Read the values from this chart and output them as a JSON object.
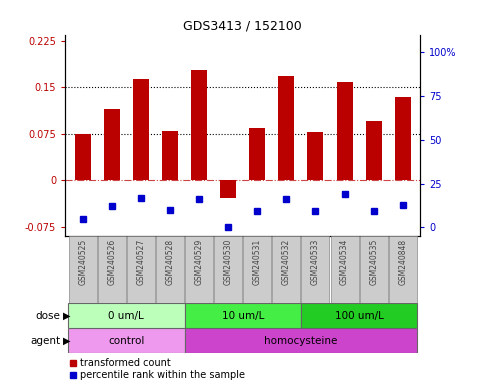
{
  "title": "GDS3413 / 152100",
  "samples": [
    "GSM240525",
    "GSM240526",
    "GSM240527",
    "GSM240528",
    "GSM240529",
    "GSM240530",
    "GSM240531",
    "GSM240532",
    "GSM240533",
    "GSM240534",
    "GSM240535",
    "GSM240848"
  ],
  "red_values": [
    0.075,
    0.115,
    0.163,
    0.08,
    0.178,
    -0.028,
    0.085,
    0.168,
    0.078,
    0.158,
    0.095,
    0.135
  ],
  "blue_values": [
    -0.062,
    -0.042,
    -0.028,
    -0.048,
    -0.03,
    -0.075,
    -0.05,
    -0.03,
    -0.05,
    -0.022,
    -0.05,
    -0.04
  ],
  "ylim_left": [
    -0.09,
    0.235
  ],
  "ylim_right": [
    -5,
    110
  ],
  "yticks_left": [
    -0.075,
    0,
    0.075,
    0.15,
    0.225
  ],
  "yticks_right": [
    0,
    25,
    50,
    75,
    100
  ],
  "ytick_labels_left": [
    "-0.075",
    "0",
    "0.075",
    "0.15",
    "0.225"
  ],
  "ytick_labels_right": [
    "0",
    "25",
    "50",
    "75",
    "100%"
  ],
  "hlines": [
    0.075,
    0.15
  ],
  "red_color": "#BB0000",
  "blue_color": "#0000CC",
  "zero_line_color": "#CC4444",
  "dose_groups": [
    {
      "label": "0 um/L",
      "start": 0,
      "end": 4,
      "color": "#BBFFBB"
    },
    {
      "label": "10 um/L",
      "start": 4,
      "end": 8,
      "color": "#44EE44"
    },
    {
      "label": "100 um/L",
      "start": 8,
      "end": 12,
      "color": "#22CC22"
    }
  ],
  "agent_groups": [
    {
      "label": "control",
      "start": 0,
      "end": 4,
      "color": "#EE99EE"
    },
    {
      "label": "homocysteine",
      "start": 4,
      "end": 12,
      "color": "#CC44CC"
    }
  ],
  "legend_red": "transformed count",
  "legend_blue": "percentile rank within the sample",
  "bar_width": 0.55,
  "sample_box_color": "#CCCCCC",
  "sample_text_color": "#444444"
}
